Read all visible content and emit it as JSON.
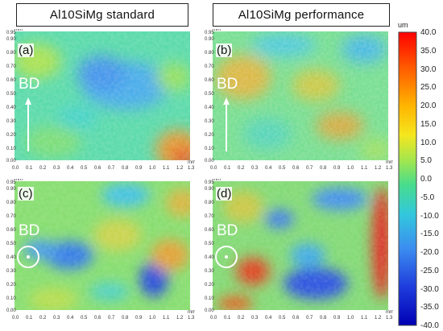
{
  "headers": {
    "left": "Al10SiMg  standard",
    "right": "Al10SiMg  performance"
  },
  "panels": [
    {
      "label": "(a)",
      "bd": "BD"
    },
    {
      "label": "(b)",
      "bd": "BD"
    },
    {
      "label": "(c)",
      "bd": "BD"
    },
    {
      "label": "(d)",
      "bd": "BD"
    }
  ],
  "axes": {
    "unit": "mm",
    "x_ticks": [
      "0.0",
      "0.1",
      "0.2",
      "0.3",
      "0.4",
      "0.5",
      "0.6",
      "0.7",
      "0.8",
      "0.9",
      "1.0",
      "1.1",
      "1.2",
      "1.3"
    ],
    "y_ticks": [
      "0.95",
      "0.90",
      "0.80",
      "0.70",
      "0.60",
      "0.50",
      "0.40",
      "0.30",
      "0.20",
      "0.10",
      "0.00"
    ]
  },
  "colorbar": {
    "unit": "um",
    "labels": [
      "40.0",
      "35.0",
      "30.0",
      "25.0",
      "20.0",
      "15.0",
      "10.0",
      "5.0",
      "0.0",
      "-5.0",
      "-10.0",
      "-15.0",
      "-20.0",
      "-25.0",
      "-30.0",
      "-35.0",
      "-40.0"
    ],
    "colors": [
      "#ff0000",
      "#ff5a00",
      "#ffb400",
      "#f5e61e",
      "#a0e650",
      "#48dc8c",
      "#32c8dc",
      "#3c8cf0",
      "#1e3cdc",
      "#0000b4"
    ]
  }
}
